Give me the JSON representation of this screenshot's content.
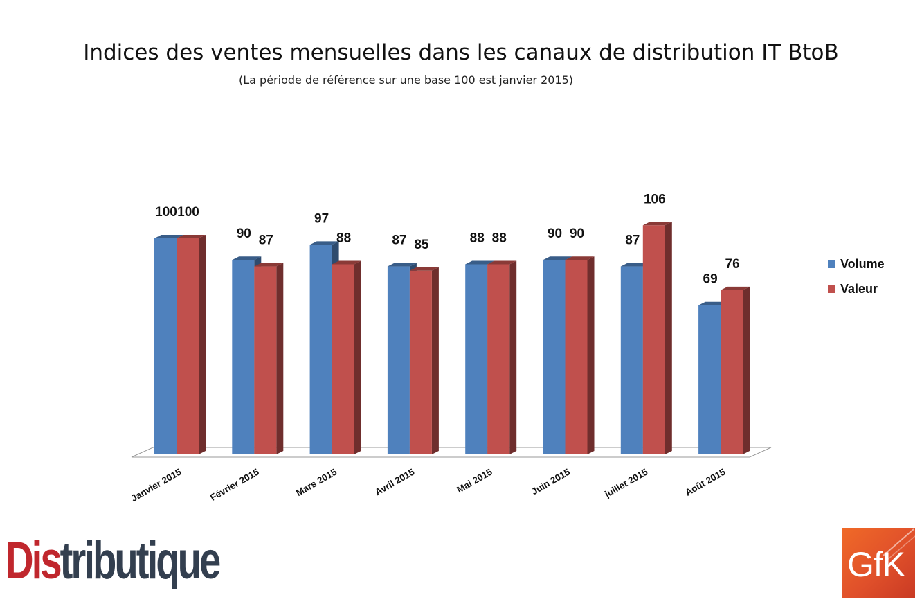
{
  "chart_data": {
    "type": "bar",
    "title": "Indices des ventes mensuelles dans les canaux de distribution IT BtoB",
    "subtitle": "(La période de référence sur une base 100 est janvier 2015)",
    "categories": [
      "Janvier 2015",
      "Février 2015",
      "Mars 2015",
      "Avril 2015",
      "Mai 2015",
      "Juin 2015",
      "juillet 2015",
      "Août 2015"
    ],
    "series": [
      {
        "name": "Volume",
        "values": [
          100,
          90,
          97,
          87,
          88,
          90,
          87,
          69
        ],
        "color": "#4f81bd"
      },
      {
        "name": "Valeur",
        "values": [
          100,
          87,
          88,
          85,
          88,
          90,
          106,
          76
        ],
        "color": "#c0504d"
      }
    ],
    "ylim": [
      0,
      106
    ],
    "grid": false,
    "legend_position": "right",
    "style": "3d-clustered-column"
  },
  "logos": {
    "distributique": {
      "part1": "Dis",
      "part2": "tributique",
      "color1": "#c0272d",
      "color2": "#333f4f"
    },
    "gfk": {
      "text": "GfK",
      "color": "#e9552b"
    }
  }
}
